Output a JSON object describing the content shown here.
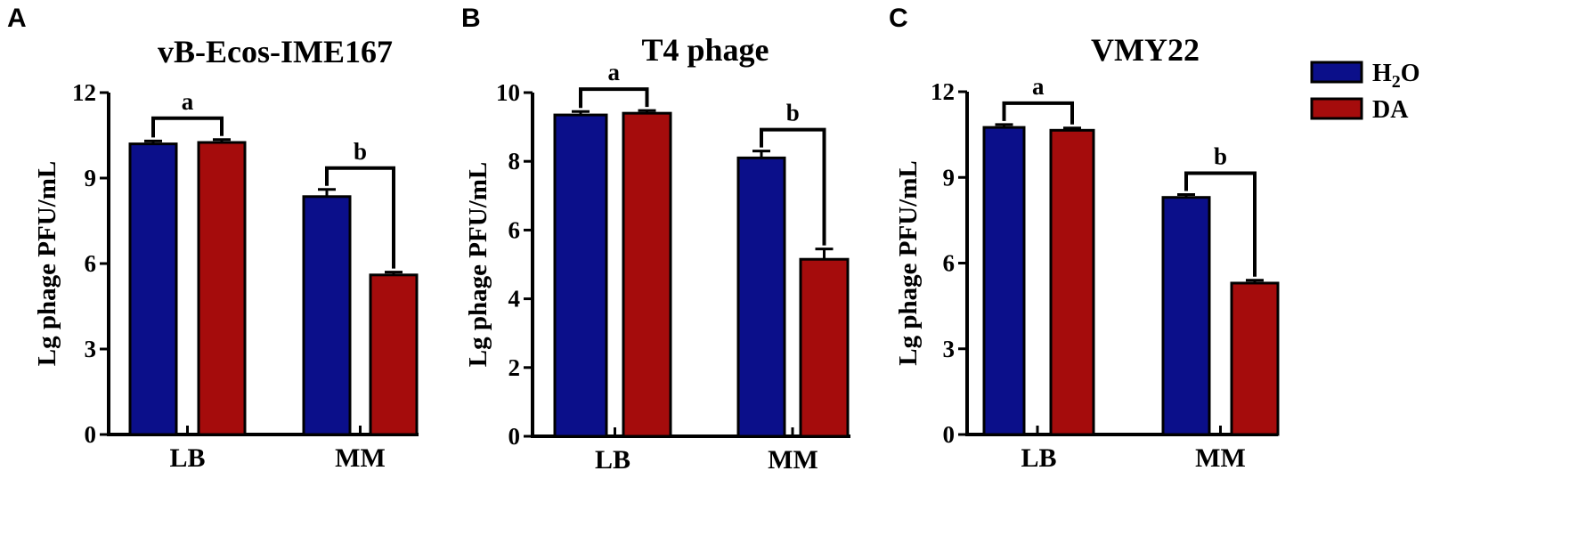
{
  "legend": [
    {
      "name": "H2O",
      "label_main": "H",
      "label_sub": "2",
      "label_tail": "O",
      "color": "#0b0f8a"
    },
    {
      "name": "DA",
      "label_main": "DA",
      "label_sub": "",
      "label_tail": "",
      "color": "#a50c0c"
    }
  ],
  "chart_data": [
    {
      "panel": "A",
      "type": "bar",
      "title": "vB-Ecos-IME167",
      "ylabel": "Lg phage PFU/mL",
      "xlabel": "",
      "ylim": [
        0,
        12
      ],
      "yticks": [
        0,
        3,
        6,
        9,
        12
      ],
      "categories": [
        "LB",
        "MM"
      ],
      "series": [
        {
          "name": "H2O",
          "values": [
            10.2,
            8.35
          ],
          "errors": [
            0.1,
            0.25
          ]
        },
        {
          "name": "DA",
          "values": [
            10.25,
            5.6
          ],
          "errors": [
            0.1,
            0.1
          ]
        }
      ],
      "significance": [
        "a",
        "b"
      ]
    },
    {
      "panel": "B",
      "type": "bar",
      "title": "T4 phage",
      "ylabel": "Lg phage PFU/mL",
      "xlabel": "",
      "ylim": [
        0,
        10
      ],
      "yticks": [
        0,
        2,
        4,
        6,
        8,
        10
      ],
      "categories": [
        "LB",
        "MM"
      ],
      "series": [
        {
          "name": "H2O",
          "values": [
            9.35,
            8.1
          ],
          "errors": [
            0.1,
            0.2
          ]
        },
        {
          "name": "DA",
          "values": [
            9.4,
            5.15
          ],
          "errors": [
            0.08,
            0.3
          ]
        }
      ],
      "significance": [
        "a",
        "b"
      ]
    },
    {
      "panel": "C",
      "type": "bar",
      "title": "VMY22",
      "ylabel": "Lg phage PFU/mL",
      "xlabel": "",
      "ylim": [
        0,
        12
      ],
      "yticks": [
        0,
        3,
        6,
        9,
        12
      ],
      "categories": [
        "LB",
        "MM"
      ],
      "series": [
        {
          "name": "H2O",
          "values": [
            10.75,
            8.3
          ],
          "errors": [
            0.1,
            0.1
          ]
        },
        {
          "name": "DA",
          "values": [
            10.65,
            5.3
          ],
          "errors": [
            0.08,
            0.1
          ]
        }
      ],
      "significance": [
        "a",
        "b"
      ]
    }
  ]
}
